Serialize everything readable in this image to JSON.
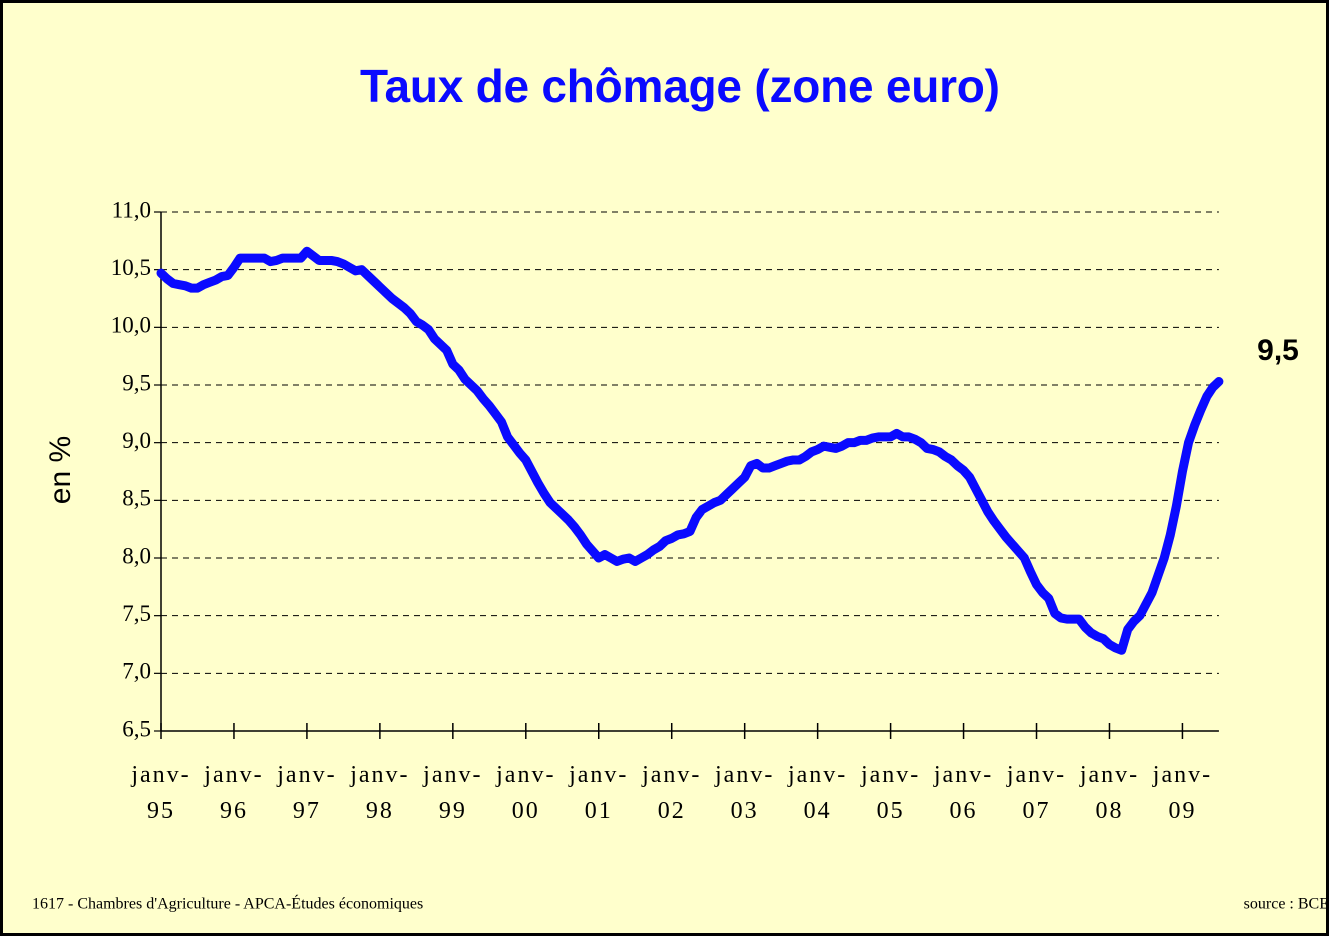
{
  "chart_data": {
    "type": "line",
    "title": "Taux de chômage (zone euro)",
    "y_label": "en %",
    "footer_left": "1617 - Chambres d'Agriculture - APCA-Études économiques",
    "footer_right": "source : BCE",
    "color": "#0a0aff",
    "grid": true,
    "ylim": [
      6.5,
      11
    ],
    "yticks": [
      {
        "value": 6.5,
        "label": "6,5"
      },
      {
        "value": 7,
        "label": "7,0"
      },
      {
        "value": 7.5,
        "label": "7,5"
      },
      {
        "value": 8,
        "label": "8,0"
      },
      {
        "value": 8.5,
        "label": "8,5"
      },
      {
        "value": 9,
        "label": "9,0"
      },
      {
        "value": 9.5,
        "label": "9,5"
      },
      {
        "value": 10,
        "label": "10,0"
      },
      {
        "value": 10.5,
        "label": "10,5"
      },
      {
        "value": 11,
        "label": "11,0"
      }
    ],
    "categories": [
      "janv-95",
      null,
      null,
      null,
      null,
      null,
      null,
      null,
      null,
      null,
      null,
      null,
      "janv-96",
      null,
      null,
      null,
      null,
      null,
      null,
      null,
      null,
      null,
      null,
      null,
      "janv-97",
      null,
      null,
      null,
      null,
      null,
      null,
      null,
      null,
      null,
      null,
      null,
      "janv-98",
      null,
      null,
      null,
      null,
      null,
      null,
      null,
      null,
      null,
      null,
      null,
      "janv-99",
      null,
      null,
      null,
      null,
      null,
      null,
      null,
      null,
      null,
      null,
      null,
      "janv-00",
      null,
      null,
      null,
      null,
      null,
      null,
      null,
      null,
      null,
      null,
      null,
      "janv-01",
      null,
      null,
      null,
      null,
      null,
      null,
      null,
      null,
      null,
      null,
      null,
      "janv-02",
      null,
      null,
      null,
      null,
      null,
      null,
      null,
      null,
      null,
      null,
      null,
      "janv-03",
      null,
      null,
      null,
      null,
      null,
      null,
      null,
      null,
      null,
      null,
      null,
      "janv-04",
      null,
      null,
      null,
      null,
      null,
      null,
      null,
      null,
      null,
      null,
      null,
      "janv-05",
      null,
      null,
      null,
      null,
      null,
      null,
      null,
      null,
      null,
      null,
      null,
      "janv-06",
      null,
      null,
      null,
      null,
      null,
      null,
      null,
      null,
      null,
      null,
      null,
      "janv-07",
      null,
      null,
      null,
      null,
      null,
      null,
      null,
      null,
      null,
      null,
      null,
      "janv-08",
      null,
      null,
      null,
      null,
      null,
      null,
      null,
      null,
      null,
      null,
      null,
      "janv-09",
      null,
      null,
      null,
      null,
      null,
      null
    ],
    "values": [
      10.47,
      10.42,
      10.38,
      10.37,
      10.36,
      10.34,
      10.34,
      10.37,
      10.39,
      10.41,
      10.44,
      10.45,
      10.52,
      10.6,
      10.6,
      10.6,
      10.6,
      10.6,
      10.57,
      10.58,
      10.6,
      10.6,
      10.6,
      10.6,
      10.66,
      10.62,
      10.58,
      10.58,
      10.58,
      10.57,
      10.55,
      10.52,
      10.49,
      10.5,
      10.45,
      10.4,
      10.35,
      10.3,
      10.25,
      10.21,
      10.17,
      10.12,
      10.05,
      10.02,
      9.98,
      9.9,
      9.85,
      9.8,
      9.68,
      9.63,
      9.55,
      9.5,
      9.45,
      9.38,
      9.32,
      9.25,
      9.18,
      9.05,
      8.98,
      8.91,
      8.85,
      8.75,
      8.65,
      8.56,
      8.48,
      8.43,
      8.38,
      8.33,
      8.27,
      8.2,
      8.12,
      8.06,
      8.0,
      8.03,
      8.0,
      7.97,
      7.99,
      8.0,
      7.97,
      8.0,
      8.03,
      8.07,
      8.1,
      8.15,
      8.17,
      8.2,
      8.21,
      8.23,
      8.35,
      8.42,
      8.45,
      8.48,
      8.5,
      8.55,
      8.6,
      8.65,
      8.7,
      8.8,
      8.82,
      8.78,
      8.78,
      8.8,
      8.82,
      8.84,
      8.85,
      8.85,
      8.88,
      8.92,
      8.94,
      8.97,
      8.96,
      8.95,
      8.97,
      9.0,
      9.0,
      9.02,
      9.02,
      9.04,
      9.05,
      9.05,
      9.05,
      9.08,
      9.05,
      9.05,
      9.03,
      9.0,
      8.95,
      8.94,
      8.92,
      8.88,
      8.85,
      8.8,
      8.76,
      8.7,
      8.6,
      8.5,
      8.4,
      8.32,
      8.25,
      8.18,
      8.12,
      8.06,
      8.0,
      7.88,
      7.77,
      7.7,
      7.65,
      7.52,
      7.48,
      7.47,
      7.47,
      7.47,
      7.4,
      7.35,
      7.32,
      7.3,
      7.25,
      7.22,
      7.2,
      7.38,
      7.45,
      7.5,
      7.6,
      7.7,
      7.85,
      8.0,
      8.2,
      8.45,
      8.75,
      9.0,
      9.15,
      9.28,
      9.4,
      9.48,
      9.53
    ],
    "value_labels": [
      null,
      null,
      null,
      null,
      null,
      null,
      null,
      null,
      null,
      null,
      null,
      null,
      null,
      null,
      null,
      null,
      null,
      null,
      null,
      null,
      null,
      null,
      null,
      null,
      null,
      null,
      null,
      null,
      null,
      null,
      null,
      null,
      null,
      null,
      null,
      null,
      null,
      null,
      null,
      null,
      null,
      null,
      null,
      null,
      null,
      null,
      null,
      null,
      null,
      null,
      null,
      null,
      null,
      null,
      null,
      null,
      null,
      null,
      null,
      null,
      null,
      null,
      null,
      null,
      null,
      null,
      null,
      null,
      null,
      null,
      null,
      null,
      null,
      null,
      null,
      null,
      null,
      null,
      null,
      null,
      null,
      null,
      null,
      null,
      null,
      null,
      null,
      null,
      null,
      null,
      null,
      null,
      null,
      null,
      null,
      null,
      null,
      null,
      null,
      null,
      null,
      null,
      null,
      null,
      null,
      null,
      null,
      null,
      null,
      null,
      null,
      null,
      null,
      null,
      null,
      null,
      null,
      null,
      null,
      null,
      null,
      null,
      null,
      null,
      null,
      null,
      null,
      null,
      null,
      null,
      null,
      null,
      null,
      null,
      null,
      null,
      null,
      null,
      null,
      null,
      null,
      null,
      null,
      null,
      null,
      null,
      null,
      null,
      null,
      null,
      null,
      null,
      null,
      null,
      null,
      null,
      null,
      null,
      null,
      null,
      null,
      null,
      null,
      null,
      null,
      null,
      null,
      null,
      null,
      null,
      null,
      null,
      null,
      null,
      "9,5"
    ]
  }
}
